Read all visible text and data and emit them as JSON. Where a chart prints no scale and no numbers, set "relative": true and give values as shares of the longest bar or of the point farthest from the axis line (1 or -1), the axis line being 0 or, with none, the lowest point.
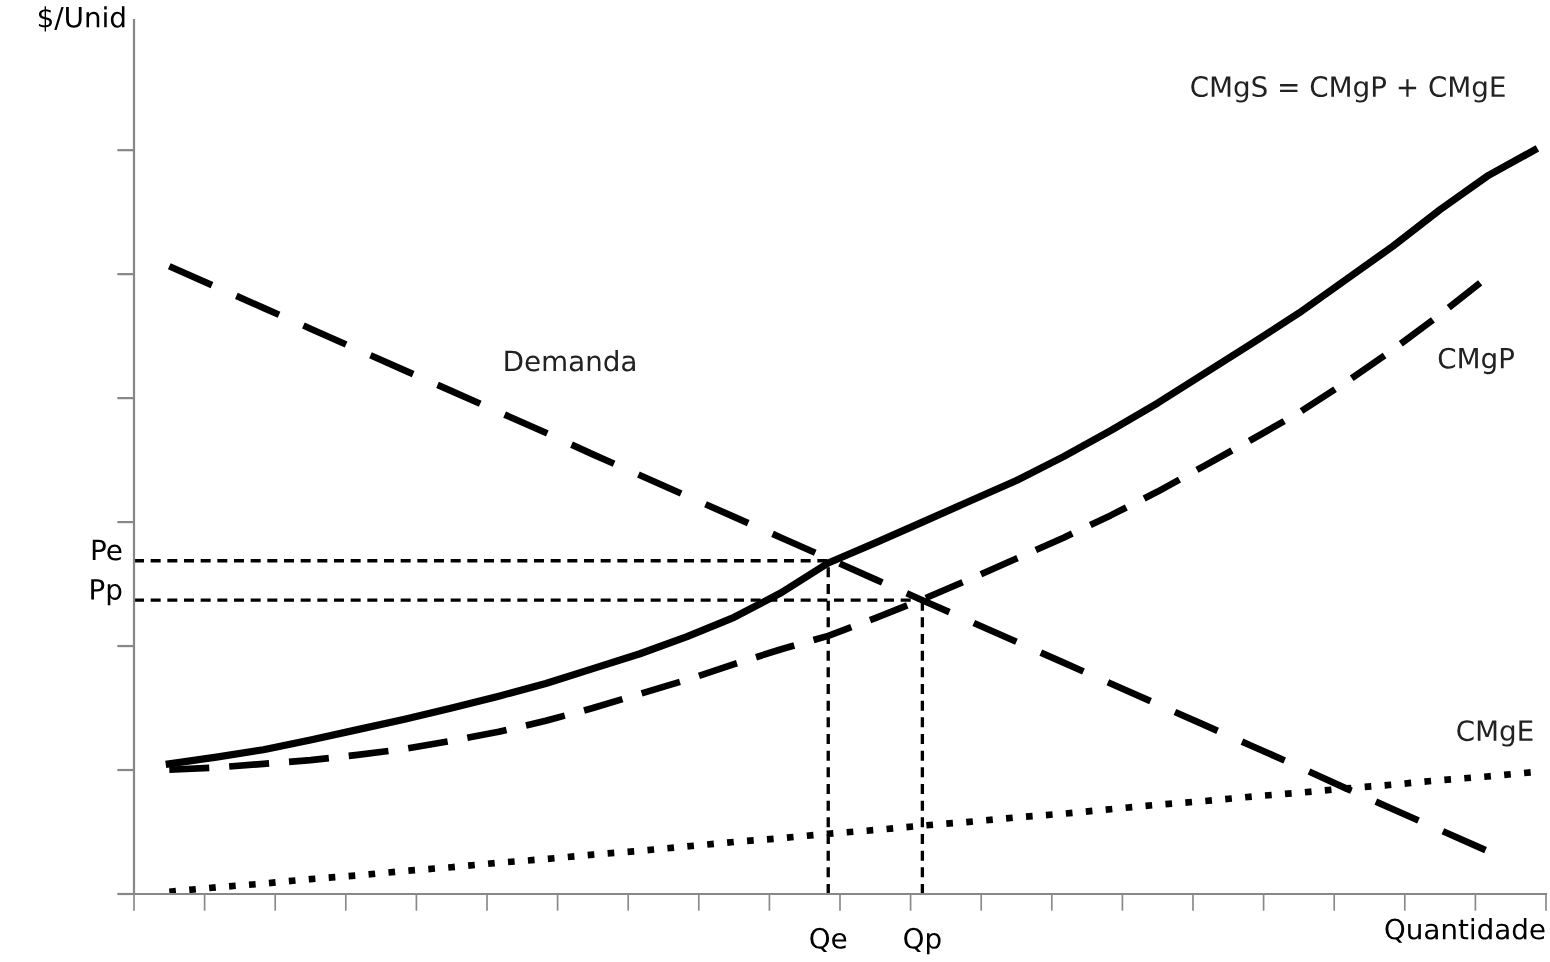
{
  "chart_data": {
    "type": "line",
    "relative": true,
    "ylabel": "$/Unid",
    "xlabel": "Quantidade",
    "categories": [
      null,
      null,
      null,
      null,
      null,
      null,
      null,
      null,
      null,
      null,
      null,
      null,
      null,
      null,
      "Qe",
      null,
      "Qp",
      null,
      null,
      null,
      null,
      null,
      null,
      null,
      null,
      null,
      null,
      null,
      null,
      null
    ],
    "grid": false,
    "marker": "none",
    "series": [
      {
        "name": "CMgS = CMgP + CMgE",
        "color": "#000000",
        "line_style": "solid",
        "values": [
          0.175,
          0.184,
          0.194,
          0.207,
          0.221,
          0.235,
          0.25,
          0.266,
          0.283,
          0.303,
          0.323,
          0.346,
          0.372,
          0.405,
          0.445,
          0.472,
          0.5,
          0.528,
          0.556,
          0.588,
          0.623,
          0.66,
          0.7,
          0.74,
          0.781,
          0.826,
          0.871,
          0.92,
          0.965,
          1.0
        ]
      },
      {
        "name": "CMgP",
        "color": "#000000",
        "line_style": "dashed",
        "values": [
          0.167,
          0.17,
          0.175,
          0.18,
          0.187,
          0.195,
          0.206,
          0.218,
          0.233,
          0.25,
          0.269,
          0.288,
          0.309,
          0.329,
          0.347,
          0.371,
          0.396,
          0.423,
          0.451,
          0.479,
          0.509,
          0.541,
          0.576,
          0.611,
          0.647,
          0.688,
          0.732,
          0.779,
          0.829,
          null
        ]
      },
      {
        "name": "Demanda",
        "color": "#000000",
        "line_style": "dashed",
        "values": [
          0.844,
          0.816,
          0.788,
          0.76,
          0.732,
          0.704,
          0.676,
          0.648,
          0.62,
          0.591,
          0.563,
          0.535,
          0.507,
          0.479,
          0.451,
          0.423,
          0.395,
          0.367,
          0.339,
          0.311,
          0.283,
          0.255,
          0.227,
          0.199,
          0.171,
          0.142,
          0.114,
          0.086,
          0.058,
          null
        ]
      },
      {
        "name": "CMgE",
        "color": "#000000",
        "line_style": "dotted",
        "values": [
          0.003,
          0.009,
          0.014,
          0.02,
          0.025,
          0.031,
          0.036,
          0.042,
          0.047,
          0.053,
          0.058,
          0.064,
          0.07,
          0.075,
          0.081,
          0.086,
          0.092,
          0.097,
          0.103,
          0.108,
          0.114,
          0.12,
          0.125,
          0.131,
          0.136,
          0.142,
          0.147,
          0.153,
          0.158,
          0.164
        ]
      }
    ],
    "ref_lines": [
      {
        "axis": "y",
        "value": 0.448,
        "label": "Pe",
        "line_style": "dashed",
        "color": "#000000"
      },
      {
        "axis": "y",
        "value": 0.395,
        "label": "Pp",
        "line_style": "dashed",
        "color": "#000000"
      },
      {
        "axis": "x",
        "value": "Qe",
        "line_style": "dashed",
        "color": "#000000"
      },
      {
        "axis": "x",
        "value": "Qp",
        "line_style": "dashed",
        "color": "#000000"
      }
    ]
  }
}
